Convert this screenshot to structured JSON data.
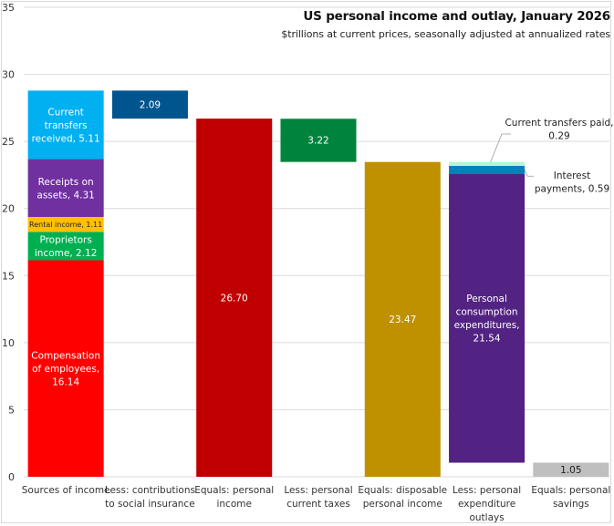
{
  "chart_data": {
    "type": "bar",
    "subtype": "waterfall-stacked",
    "title": "US personal  income and outlay, January 2026",
    "subtitle": "$trillions at current prices, seasonally adjusted at annualized rates",
    "xlabel": "",
    "ylabel": "",
    "ylim": [
      0,
      35
    ],
    "yticks": [
      0,
      5,
      10,
      15,
      20,
      25,
      30,
      35
    ],
    "grid": true,
    "legend": "none",
    "categories": [
      "Sources of income",
      "Less: contributions to social insurance",
      "Equals: personal income",
      "Less: personal current taxes",
      "Equals: disposable personal income",
      "Less: personal expenditure outlays",
      "Equals: personal savings"
    ],
    "category_label_lines": [
      [
        "Sources of income"
      ],
      [
        "Less: contributions",
        "to social insurance"
      ],
      [
        "Equals: personal",
        "income"
      ],
      [
        "Less: personal",
        "current taxes"
      ],
      [
        "Equals: disposable",
        "personal income"
      ],
      [
        "Less: personal",
        "expenditure",
        "outlays"
      ],
      [
        "Equals: personal",
        "savings"
      ]
    ],
    "segments": [
      {
        "category": 0,
        "name": "Compensation of employees",
        "base": 0,
        "value": 16.14,
        "color": "#ff0000",
        "label_lines": [
          "Compensation",
          "of employees,",
          "16.14"
        ],
        "label_color": "#ffffff",
        "label_size": "normal",
        "label_pos": "inside"
      },
      {
        "category": 0,
        "name": "Proprietors income",
        "base": 16.14,
        "value": 2.12,
        "color": "#00b050",
        "label_lines": [
          "Proprietors",
          "income, 2.12"
        ],
        "label_color": "#ffffff",
        "label_size": "normal",
        "label_pos": "inside"
      },
      {
        "category": 0,
        "name": "Rental income",
        "base": 18.26,
        "value": 1.11,
        "color": "#ffc000",
        "label_lines": [
          "Rental income, 1.11"
        ],
        "label_color": "#222222",
        "label_size": "small",
        "label_pos": "inside"
      },
      {
        "category": 0,
        "name": "Receipts on assets",
        "base": 19.37,
        "value": 4.31,
        "color": "#7030a0",
        "label_lines": [
          "Receipts on",
          "assets, 4.31"
        ],
        "label_color": "#ffffff",
        "label_size": "normal",
        "label_pos": "inside"
      },
      {
        "category": 0,
        "name": "Current transfers received",
        "base": 23.68,
        "value": 5.11,
        "color": "#00b0f0",
        "label_lines": [
          "Current",
          "transfers",
          "received, 5.11"
        ],
        "label_color": "#ffffff",
        "label_size": "normal",
        "label_pos": "inside"
      },
      {
        "category": 1,
        "name": "Contributions to social insurance",
        "base": 26.7,
        "value": 2.09,
        "color": "#00558f",
        "label_lines": [
          "2.09"
        ],
        "label_color": "#ffffff",
        "label_size": "normal",
        "label_pos": "inside"
      },
      {
        "category": 2,
        "name": "Personal income",
        "base": 0,
        "value": 26.7,
        "color": "#c00000",
        "label_lines": [
          "26.70"
        ],
        "label_color": "#ffffff",
        "label_size": "normal",
        "label_pos": "inside"
      },
      {
        "category": 3,
        "name": "Personal current taxes",
        "base": 23.47,
        "value": 3.22,
        "color": "#00843d",
        "label_lines": [
          "3.22"
        ],
        "label_color": "#ffffff",
        "label_size": "normal",
        "label_pos": "inside"
      },
      {
        "category": 4,
        "name": "Disposable personal income",
        "base": 0,
        "value": 23.47,
        "color": "#bf9000",
        "label_lines": [
          "23.47"
        ],
        "label_color": "#ffffff",
        "label_size": "normal",
        "label_pos": "inside"
      },
      {
        "category": 5,
        "name": "Personal consumption expenditures",
        "base": 1.05,
        "value": 21.54,
        "color": "#522382",
        "label_lines": [
          "Personal",
          "consumption",
          "expenditures,",
          "21.54"
        ],
        "label_color": "#ffffff",
        "label_size": "normal",
        "label_pos": "inside"
      },
      {
        "category": 5,
        "name": "Interest payments",
        "base": 22.59,
        "value": 0.59,
        "color": "#0083b8",
        "label_lines": [
          "Interest",
          "payments, 0.59"
        ],
        "label_color": "#222222",
        "label_size": "normal",
        "label_pos": "callout-right"
      },
      {
        "category": 5,
        "name": "Current transfers paid",
        "base": 23.18,
        "value": 0.29,
        "color": "#b3f5dc",
        "label_lines": [
          "Current transfers paid,",
          "0.29"
        ],
        "label_color": "#222222",
        "label_size": "normal",
        "label_pos": "callout-top"
      },
      {
        "category": 6,
        "name": "Personal savings",
        "base": 0,
        "value": 1.05,
        "color": "#bfbfbf",
        "label_lines": [
          "1.05"
        ],
        "label_color": "#222222",
        "label_size": "normal",
        "label_pos": "inside"
      }
    ]
  }
}
